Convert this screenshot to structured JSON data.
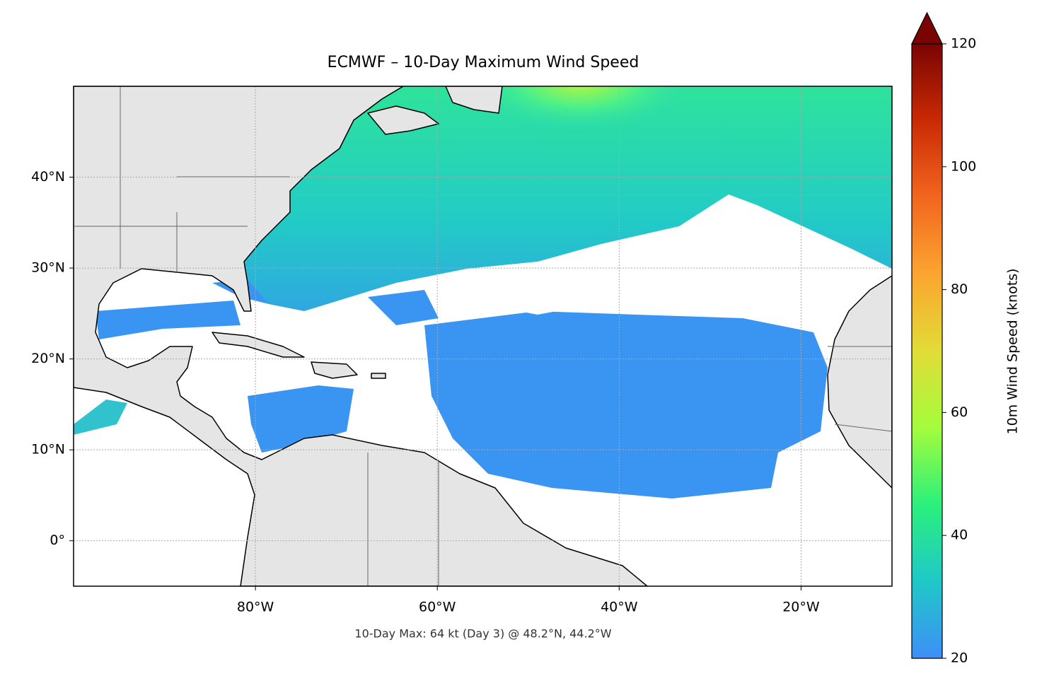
{
  "chart_data": {
    "type": "map",
    "title": "ECMWF – 10-Day Maximum Wind Speed",
    "annotation": "10-Day Max: 64 kt (Day 3) @ 48.2°N, 44.2°W",
    "xlim": [
      -100,
      -10
    ],
    "ylim": [
      -5,
      50
    ],
    "xticks": [
      {
        "value": -80,
        "label": "80°W"
      },
      {
        "value": -60,
        "label": "60°W"
      },
      {
        "value": -40,
        "label": "40°W"
      },
      {
        "value": -20,
        "label": "20°W"
      }
    ],
    "yticks": [
      {
        "value": 0,
        "label": "0°"
      },
      {
        "value": 10,
        "label": "10°N"
      },
      {
        "value": 20,
        "label": "20°N"
      },
      {
        "value": 30,
        "label": "30°N"
      },
      {
        "value": 40,
        "label": "40°N"
      }
    ],
    "grid": true,
    "colorbar": {
      "label": "10m Wind Speed (knots)",
      "lim": [
        20,
        120
      ],
      "ticks": [
        20,
        40,
        60,
        80,
        100,
        120
      ],
      "extend": "max",
      "colormap": [
        "#3e8ef8",
        "#1fc8c8",
        "#2bf07c",
        "#a4fc3c",
        "#e2dc37",
        "#fba530",
        "#f2661f",
        "#ca2a04",
        "#7a0403"
      ]
    }
  }
}
